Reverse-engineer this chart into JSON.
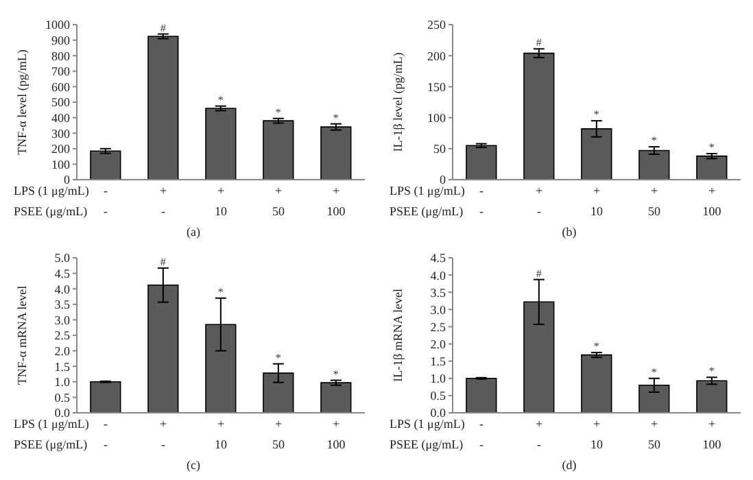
{
  "chart_data": [
    {
      "type": "bar",
      "ylabel": "TNF-α level (pg/mL)",
      "categories": [
        null,
        null,
        null,
        null,
        null
      ],
      "color": "#5a5a5a",
      "values": [
        185,
        925,
        460,
        380,
        340
      ],
      "errors": [
        15,
        15,
        15,
        15,
        20
      ],
      "value_labels": [
        null,
        "#",
        "*",
        "*",
        "*"
      ],
      "ylim": [
        0,
        1000
      ],
      "yticks": [
        0,
        100,
        200,
        300,
        400,
        500,
        600,
        700,
        800,
        900,
        1000
      ],
      "grid": false,
      "annotations": [
        "LPS (1 μg/mL)",
        "-",
        "+",
        "+",
        "+",
        "+",
        "PSEE (μg/mL)",
        "-",
        "-",
        "10",
        "50",
        "100",
        "(a)"
      ]
    },
    {
      "type": "bar",
      "ylabel": "IL-1β level (pg/mL)",
      "categories": [
        null,
        null,
        null,
        null,
        null
      ],
      "color": "#5a5a5a",
      "values": [
        55,
        204,
        82,
        47,
        38
      ],
      "errors": [
        3,
        7,
        13,
        6,
        4
      ],
      "value_labels": [
        null,
        "#",
        "*",
        "*",
        "*"
      ],
      "ylim": [
        0,
        250
      ],
      "yticks": [
        0,
        50,
        100,
        150,
        200,
        250
      ],
      "grid": false,
      "annotations": [
        "LPS (1 μg/mL)",
        "-",
        "+",
        "+",
        "+",
        "+",
        "PSEE (μg/mL)",
        "-",
        "-",
        "10",
        "50",
        "100",
        "(b)"
      ]
    },
    {
      "type": "bar",
      "ylabel": "TNF-α mRNA level",
      "categories": [
        null,
        null,
        null,
        null,
        null
      ],
      "color": "#5a5a5a",
      "values": [
        1.0,
        4.12,
        2.85,
        1.28,
        0.97
      ],
      "errors": [
        0.02,
        0.55,
        0.85,
        0.3,
        0.08
      ],
      "value_labels": [
        null,
        "#",
        "*",
        "*",
        "*"
      ],
      "ylim": [
        0,
        5
      ],
      "yticks": [
        {
          "value": 0,
          "label": "0.0"
        },
        0.5,
        {
          "value": 1,
          "label": "1.0"
        },
        1.5,
        {
          "value": 2,
          "label": "2.0"
        },
        2.5,
        {
          "value": 3,
          "label": "3.0"
        },
        3.5,
        {
          "value": 4,
          "label": "4.0"
        },
        4.5,
        {
          "value": 5,
          "label": "5.0"
        }
      ],
      "grid": false,
      "annotations": [
        "LPS (1 μg/mL)",
        "-",
        "+",
        "+",
        "+",
        "+",
        "PSEE (μg/mL)",
        "-",
        "-",
        "10",
        "50",
        "100",
        "(c)"
      ]
    },
    {
      "type": "bar",
      "ylabel": "IL-1β mRNA level",
      "categories": [
        null,
        null,
        null,
        null,
        null
      ],
      "color": "#5a5a5a",
      "values": [
        1.0,
        3.22,
        1.68,
        0.8,
        0.93
      ],
      "errors": [
        0.02,
        0.65,
        0.07,
        0.2,
        0.1
      ],
      "value_labels": [
        null,
        "#",
        "*",
        "*",
        "*"
      ],
      "ylim": [
        0,
        4.5
      ],
      "yticks": [
        {
          "value": 0,
          "label": "0.0"
        },
        0.5,
        {
          "value": 1,
          "label": "1.0"
        },
        1.5,
        {
          "value": 2,
          "label": "2.0"
        },
        2.5,
        {
          "value": 3,
          "label": "3.0"
        },
        3.5,
        {
          "value": 4,
          "label": "4.0"
        },
        4.5
      ],
      "grid": false,
      "annotations": [
        "LPS (1 μg/mL)",
        "-",
        "+",
        "+",
        "+",
        "+",
        "PSEE (μg/mL)",
        "-",
        "-",
        "10",
        "50",
        "100",
        "(d)"
      ]
    }
  ]
}
